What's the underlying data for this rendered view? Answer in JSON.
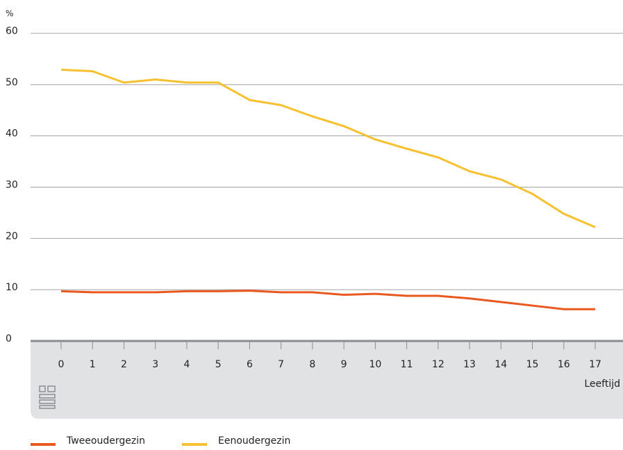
{
  "chart_data": {
    "type": "line",
    "y_label": "%",
    "x_label": "Leeftijd",
    "categories": [
      "0",
      "1",
      "2",
      "3",
      "4",
      "5",
      "6",
      "7",
      "8",
      "9",
      "10",
      "11",
      "12",
      "13",
      "14",
      "15",
      "16",
      "17"
    ],
    "series": [
      {
        "name": "Tweeoudergezin",
        "color": "#e9581f",
        "values": [
          9.7,
          9.5,
          9.5,
          9.5,
          9.7,
          9.7,
          9.8,
          9.5,
          9.5,
          9.0,
          9.2,
          8.8,
          8.8,
          8.3,
          7.6,
          6.9,
          6.2,
          6.2
        ]
      },
      {
        "name": "Eenoudergezin",
        "color": "#f7c02f",
        "values": [
          52.9,
          52.6,
          50.4,
          51.0,
          50.4,
          50.4,
          47.0,
          46.0,
          43.8,
          41.9,
          39.3,
          37.5,
          35.8,
          33.1,
          31.5,
          28.7,
          24.8,
          22.2
        ]
      }
    ],
    "ylim": [
      0,
      60
    ],
    "yticks": [
      0,
      10,
      20,
      30,
      40,
      50,
      60
    ],
    "grid": true,
    "legend": "bottom"
  }
}
